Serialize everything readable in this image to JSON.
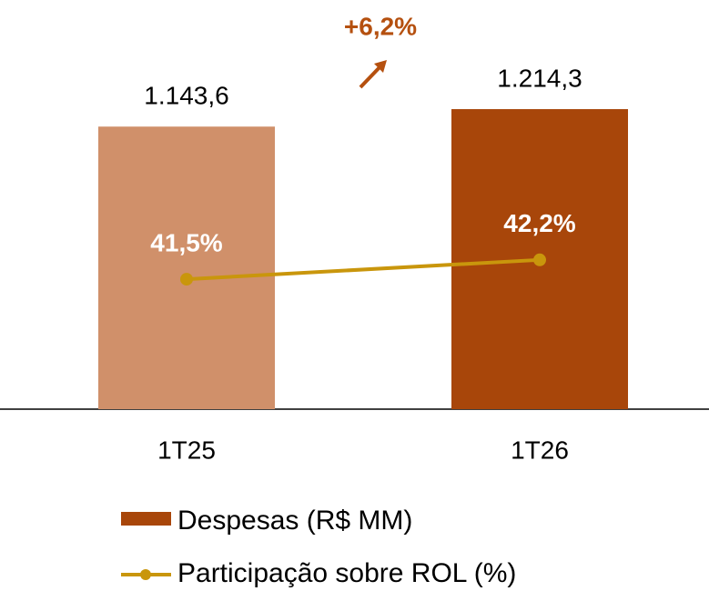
{
  "chart_data": {
    "type": "bar_line",
    "categories": [
      "1T25",
      "1T26"
    ],
    "series": [
      {
        "name": "Despesas (R$ MM)",
        "type": "bar",
        "colors": [
          "#d0906a",
          "#a8460a"
        ],
        "color": "#a8460a",
        "values": [
          1143.6,
          1214.3
        ],
        "value_labels": [
          "1.143,6",
          "1.214,3"
        ]
      },
      {
        "name": "Participação sobre ROL (%)",
        "type": "line",
        "axis": "y2",
        "color": "#c9960c",
        "values": [
          41.5,
          42.2
        ],
        "value_labels": [
          "41,5%",
          "42,2%"
        ]
      }
    ],
    "annotations": [
      {
        "text": "+6,2%",
        "color": "#b5500f"
      }
    ],
    "ylim": [
      0,
      1656
    ],
    "y2lim": [
      36.8,
      51.6
    ]
  }
}
